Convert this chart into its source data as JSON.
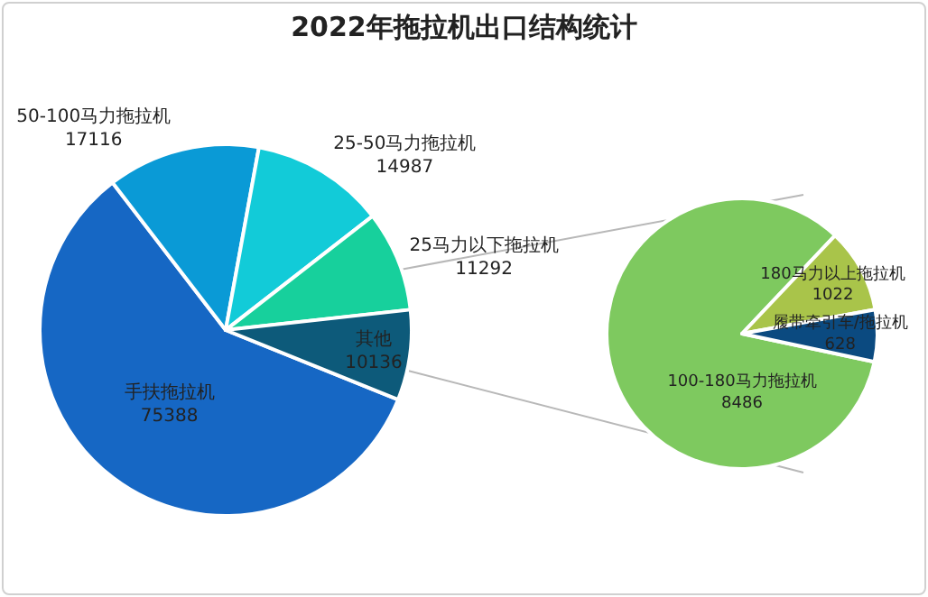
{
  "chart_data": [
    {
      "type": "pie",
      "title": "2022年拖拉机出口结构统计",
      "categories": [
        "手扶拖拉机",
        "50-100马力拖拉机",
        "25-50马力拖拉机",
        "25马力以下拖拉机",
        "其他"
      ],
      "values": [
        75388,
        17116,
        14987,
        11292,
        10136
      ],
      "colors": [
        "#1667c4",
        "#0a9ad6",
        "#12cbd8",
        "#17d09c",
        "#0d5a7a"
      ],
      "data_labels": true
    },
    {
      "type": "pie",
      "categories": [
        "100-180马力拖拉机",
        "180马力以上拖拉机",
        "履带牵引车/拖拉机"
      ],
      "values": [
        8486,
        1022,
        628
      ],
      "colors": [
        "#7ec95f",
        "#a9c44a",
        "#0b4a80"
      ],
      "data_labels": true
    }
  ]
}
